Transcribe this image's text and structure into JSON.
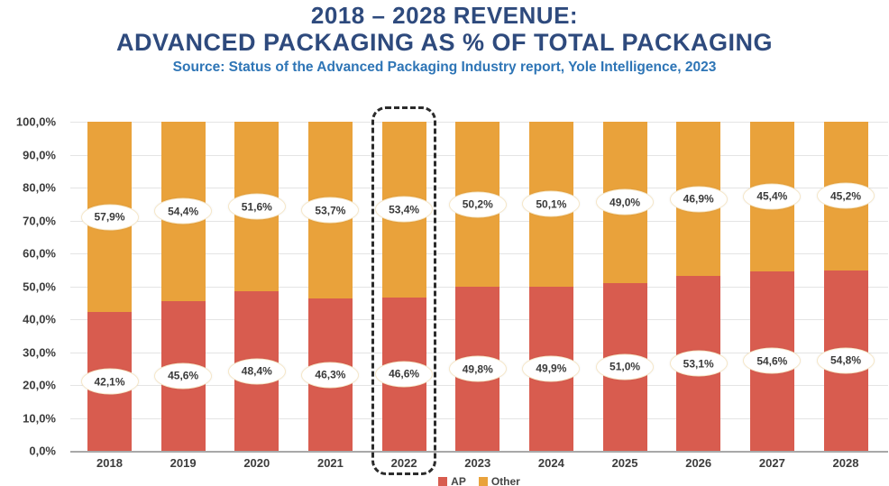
{
  "header": {
    "title_line1": "2018 – 2028 REVENUE:",
    "title_line2": "ADVANCED PACKAGING AS % OF TOTAL PACKAGING",
    "source": "Source: Status of the Advanced Packaging Industry report, Yole Intelligence, 2023"
  },
  "colors": {
    "ap_red": "#d85c4f",
    "other_orange": "#e9a23b",
    "title_navy": "#2e4a7d",
    "source_blue": "#2e75b6",
    "gridline_gray": "#e4e4e4",
    "axis_text": "#3c3c3c",
    "highlight_dash": "#2b2b2b"
  },
  "chart_data": {
    "type": "bar",
    "stacked": true,
    "title": "2018 – 2028 REVENUE: ADVANCED PACKAGING AS % OF TOTAL PACKAGING",
    "subtitle": "Source: Status of the Advanced Packaging Industry report, Yole Intelligence, 2023",
    "categories": [
      "2018",
      "2019",
      "2020",
      "2021",
      "2022",
      "2023",
      "2024",
      "2025",
      "2026",
      "2027",
      "2028"
    ],
    "series": [
      {
        "name": "AP",
        "color": "#d85c4f",
        "values": [
          42.1,
          45.6,
          48.4,
          46.3,
          46.6,
          49.8,
          49.9,
          51.0,
          53.1,
          54.6,
          54.8
        ],
        "labels": [
          "42,1%",
          "45,6%",
          "48,4%",
          "46,3%",
          "46,6%",
          "49,8%",
          "49,9%",
          "51,0%",
          "53,1%",
          "54,6%",
          "54,8%"
        ]
      },
      {
        "name": "Other",
        "color": "#e9a23b",
        "values": [
          57.9,
          54.4,
          51.6,
          53.7,
          53.4,
          50.2,
          50.1,
          49.0,
          46.9,
          45.4,
          45.2
        ],
        "labels": [
          "57,9%",
          "54,4%",
          "51,6%",
          "53,7%",
          "53,4%",
          "50,2%",
          "50,1%",
          "49,0%",
          "46,9%",
          "45,4%",
          "45,2%"
        ]
      }
    ],
    "y_ticks": [
      {
        "value": 100,
        "label": "100,0%"
      },
      {
        "value": 90,
        "label": "90,0%"
      },
      {
        "value": 80,
        "label": "80,0%"
      },
      {
        "value": 70,
        "label": "70,0%"
      },
      {
        "value": 60,
        "label": "60,0%"
      },
      {
        "value": 50,
        "label": "50,0%"
      },
      {
        "value": 40,
        "label": "40,0%"
      },
      {
        "value": 30,
        "label": "30,0%"
      },
      {
        "value": 20,
        "label": "20,0%"
      },
      {
        "value": 10,
        "label": "10,0%"
      },
      {
        "value": 0,
        "label": "0,0%"
      }
    ],
    "ylim": [
      0,
      100
    ],
    "grid": true,
    "legend_position": "bottom",
    "legend_entries": [
      "AP",
      "Other"
    ],
    "highlighted_category": "2022"
  }
}
